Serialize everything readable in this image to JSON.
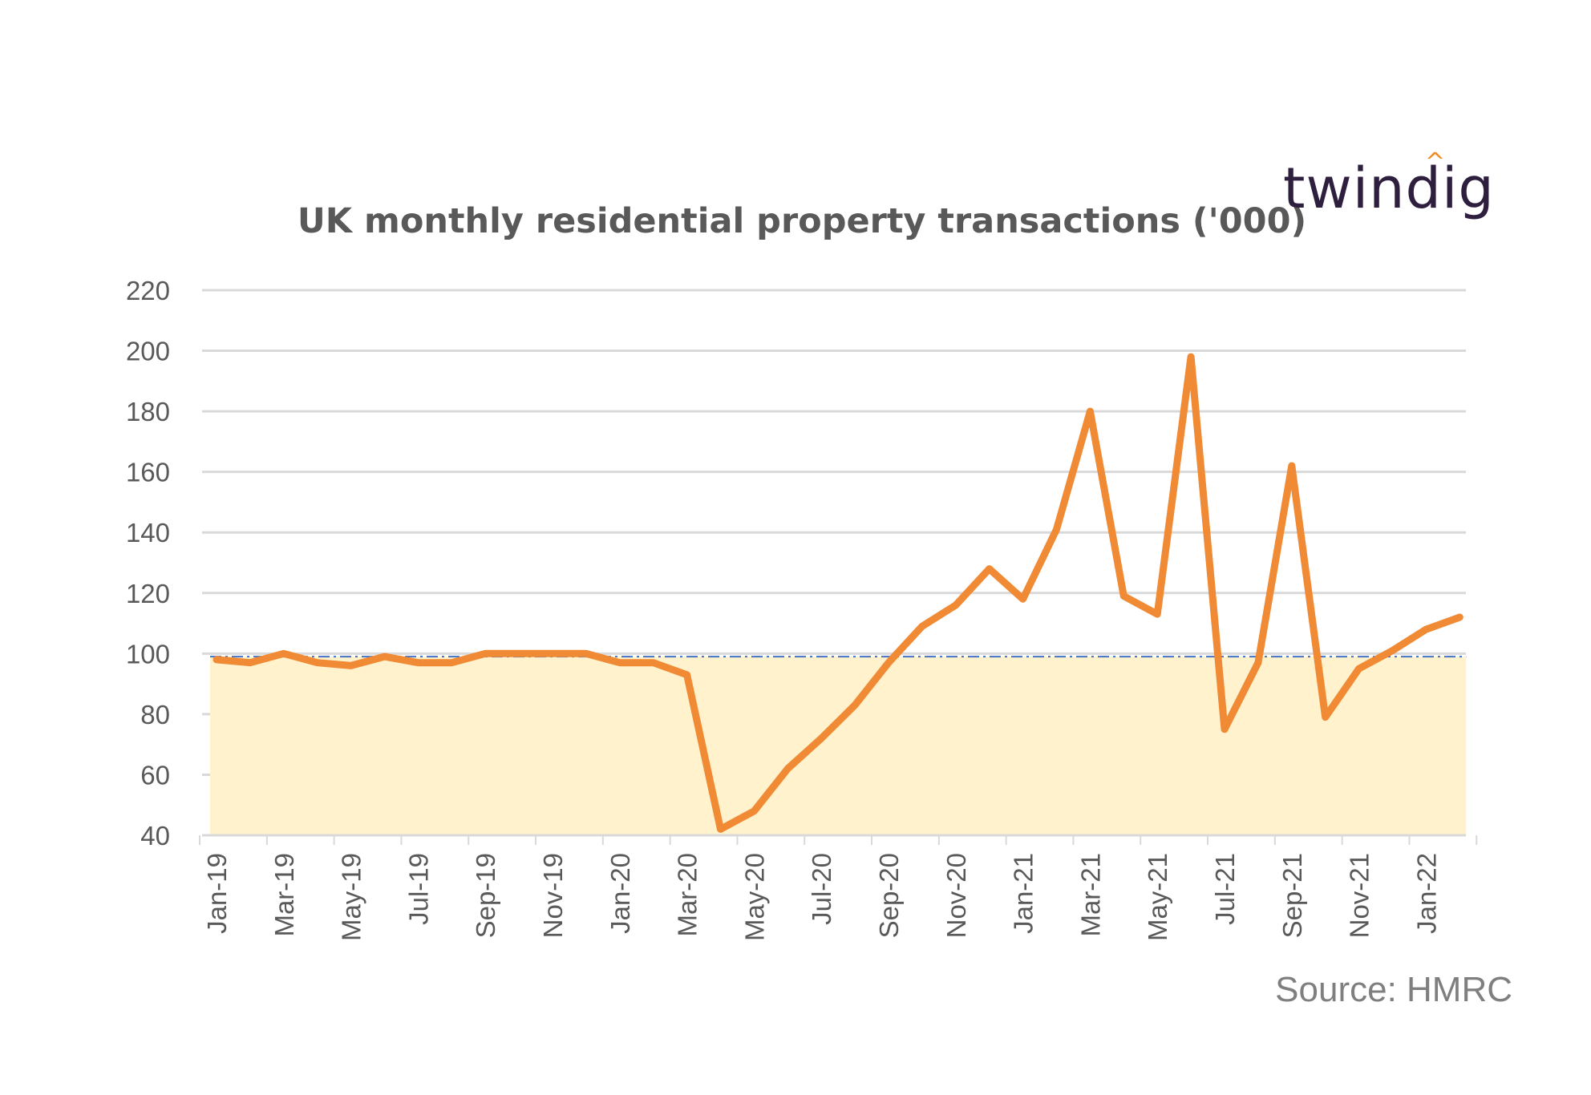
{
  "logo": {
    "text": "twindig",
    "accent_color": "#f08a24",
    "color": "#2e1f3e"
  },
  "source": "Source: HMRC",
  "colors": {
    "line": "#f08a34",
    "band": "#fff2cc",
    "reference_line": "#4472c4",
    "grid": "#d9d9d9",
    "text": "#595959"
  },
  "chart_data": {
    "type": "line",
    "title": "UK monthly residential property transactions ('000)",
    "xlabel": "",
    "ylabel": "",
    "ylim": [
      40,
      220
    ],
    "yticks": [
      40,
      60,
      80,
      100,
      120,
      140,
      160,
      180,
      200,
      220
    ],
    "grid": true,
    "legend": "none",
    "x": [
      "Jan-19",
      "Feb-19",
      "Mar-19",
      "Apr-19",
      "May-19",
      "Jun-19",
      "Jul-19",
      "Aug-19",
      "Sep-19",
      "Oct-19",
      "Nov-19",
      "Dec-19",
      "Jan-20",
      "Feb-20",
      "Mar-20",
      "Apr-20",
      "May-20",
      "Jun-20",
      "Jul-20",
      "Aug-20",
      "Sep-20",
      "Oct-20",
      "Nov-20",
      "Dec-20",
      "Jan-21",
      "Feb-21",
      "Mar-21",
      "Apr-21",
      "May-21",
      "Jun-21",
      "Jul-21",
      "Aug-21",
      "Sep-21",
      "Oct-21",
      "Nov-21",
      "Dec-21",
      "Jan-22",
      "Feb-22"
    ],
    "x_tick_labels": [
      "Jan-19",
      "Mar-19",
      "May-19",
      "Jul-19",
      "Sep-19",
      "Nov-19",
      "Jan-20",
      "Mar-20",
      "May-20",
      "Jul-20",
      "Sep-20",
      "Nov-20",
      "Jan-21",
      "Mar-21",
      "May-21",
      "Jul-21",
      "Sep-21",
      "Nov-21",
      "Jan-22"
    ],
    "series": [
      {
        "values": [
          98,
          97,
          100,
          97,
          96,
          99,
          97,
          97,
          100,
          100,
          100,
          100,
          97,
          97,
          93,
          42,
          48,
          62,
          72,
          83,
          97,
          109,
          116,
          128,
          118,
          141,
          180,
          119,
          113,
          198,
          75,
          97,
          162,
          79,
          95,
          101,
          108,
          112
        ]
      }
    ],
    "reference_band": {
      "from": 40,
      "to": 99
    }
  }
}
